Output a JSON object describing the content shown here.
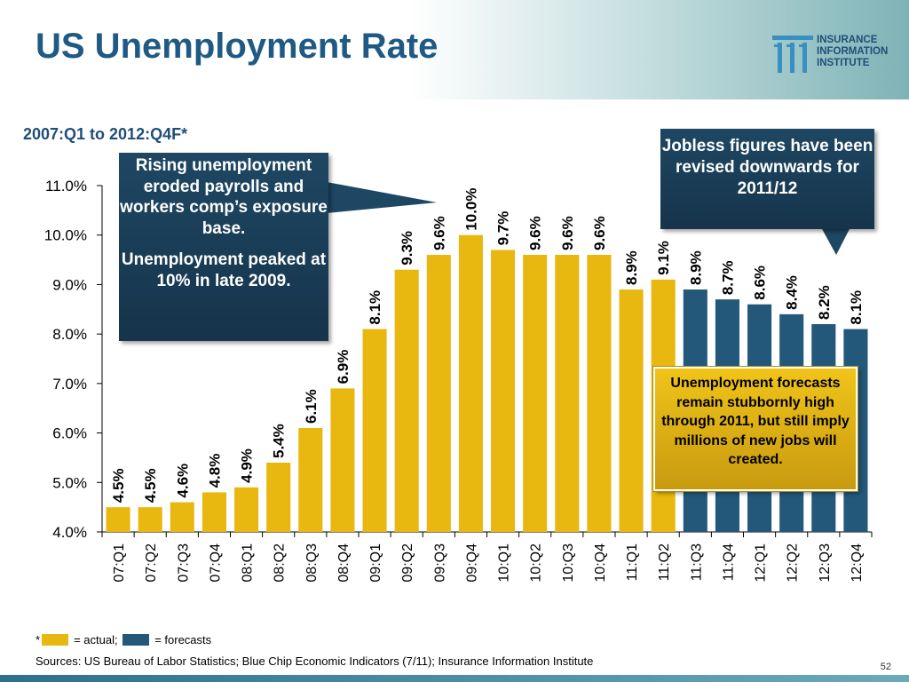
{
  "title": "US Unemployment Rate",
  "subtitle": "2007:Q1 to 2012:Q4F*",
  "logo": {
    "line1": "INSURANCE",
    "line2": "INFORMATION",
    "line3": "INSTITUTE"
  },
  "colors": {
    "actual": "#e8b810",
    "forecast": "#23587a",
    "title": "#1f5a85"
  },
  "chart_data": {
    "type": "bar",
    "categories": [
      "07:Q1",
      "07:Q2",
      "07:Q3",
      "07:Q4",
      "08:Q1",
      "08:Q2",
      "08:Q3",
      "08:Q4",
      "09:Q1",
      "09:Q2",
      "09:Q3",
      "09:Q4",
      "10:Q1",
      "10:Q2",
      "10:Q3",
      "10:Q4",
      "11:Q1",
      "11:Q2",
      "11:Q3",
      "11:Q4",
      "12:Q1",
      "12:Q2",
      "12:Q3",
      "12:Q4"
    ],
    "values": [
      4.5,
      4.5,
      4.6,
      4.8,
      4.9,
      5.4,
      6.1,
      6.9,
      8.1,
      9.3,
      9.6,
      10.0,
      9.7,
      9.6,
      9.6,
      9.6,
      8.9,
      9.1,
      8.9,
      8.7,
      8.6,
      8.4,
      8.2,
      8.1
    ],
    "data_labels": [
      "4.5%",
      "4.5%",
      "4.6%",
      "4.8%",
      "4.9%",
      "5.4%",
      "6.1%",
      "6.9%",
      "8.1%",
      "9.3%",
      "9.6%",
      "10.0%",
      "9.7%",
      "9.6%",
      "9.6%",
      "9.6%",
      "8.9%",
      "9.1%",
      "8.9%",
      "8.7%",
      "8.6%",
      "8.4%",
      "8.2%",
      "8.1%"
    ],
    "kind": [
      "actual",
      "actual",
      "actual",
      "actual",
      "actual",
      "actual",
      "actual",
      "actual",
      "actual",
      "actual",
      "actual",
      "actual",
      "actual",
      "actual",
      "actual",
      "actual",
      "actual",
      "actual",
      "forecast",
      "forecast",
      "forecast",
      "forecast",
      "forecast",
      "forecast"
    ],
    "ylim": [
      4.0,
      11.0
    ],
    "yticks": [
      4.0,
      5.0,
      6.0,
      7.0,
      8.0,
      9.0,
      10.0,
      11.0
    ],
    "ytick_labels": [
      "4.0%",
      "5.0%",
      "6.0%",
      "7.0%",
      "8.0%",
      "9.0%",
      "10.0%",
      "11.0%"
    ],
    "grid": false,
    "legend": "bottom-left"
  },
  "callouts": {
    "rising": {
      "p1": "Rising unemployment eroded payrolls and workers comp’s exposure base.",
      "p2": "Unemployment peaked at 10% in late 2009."
    },
    "jobless": "Jobless figures have been revised downwards for 2011/12",
    "forecast": "Unemployment forecasts remain stubbornly high through 2011, but still imply millions of new jobs will created."
  },
  "legend": {
    "star": "*",
    "actual_label": "= actual;",
    "forecast_label": "= forecasts"
  },
  "sources": "Sources: US Bureau of Labor Statistics; Blue Chip Economic Indicators (7/11); Insurance Information Institute",
  "page_number": "52"
}
